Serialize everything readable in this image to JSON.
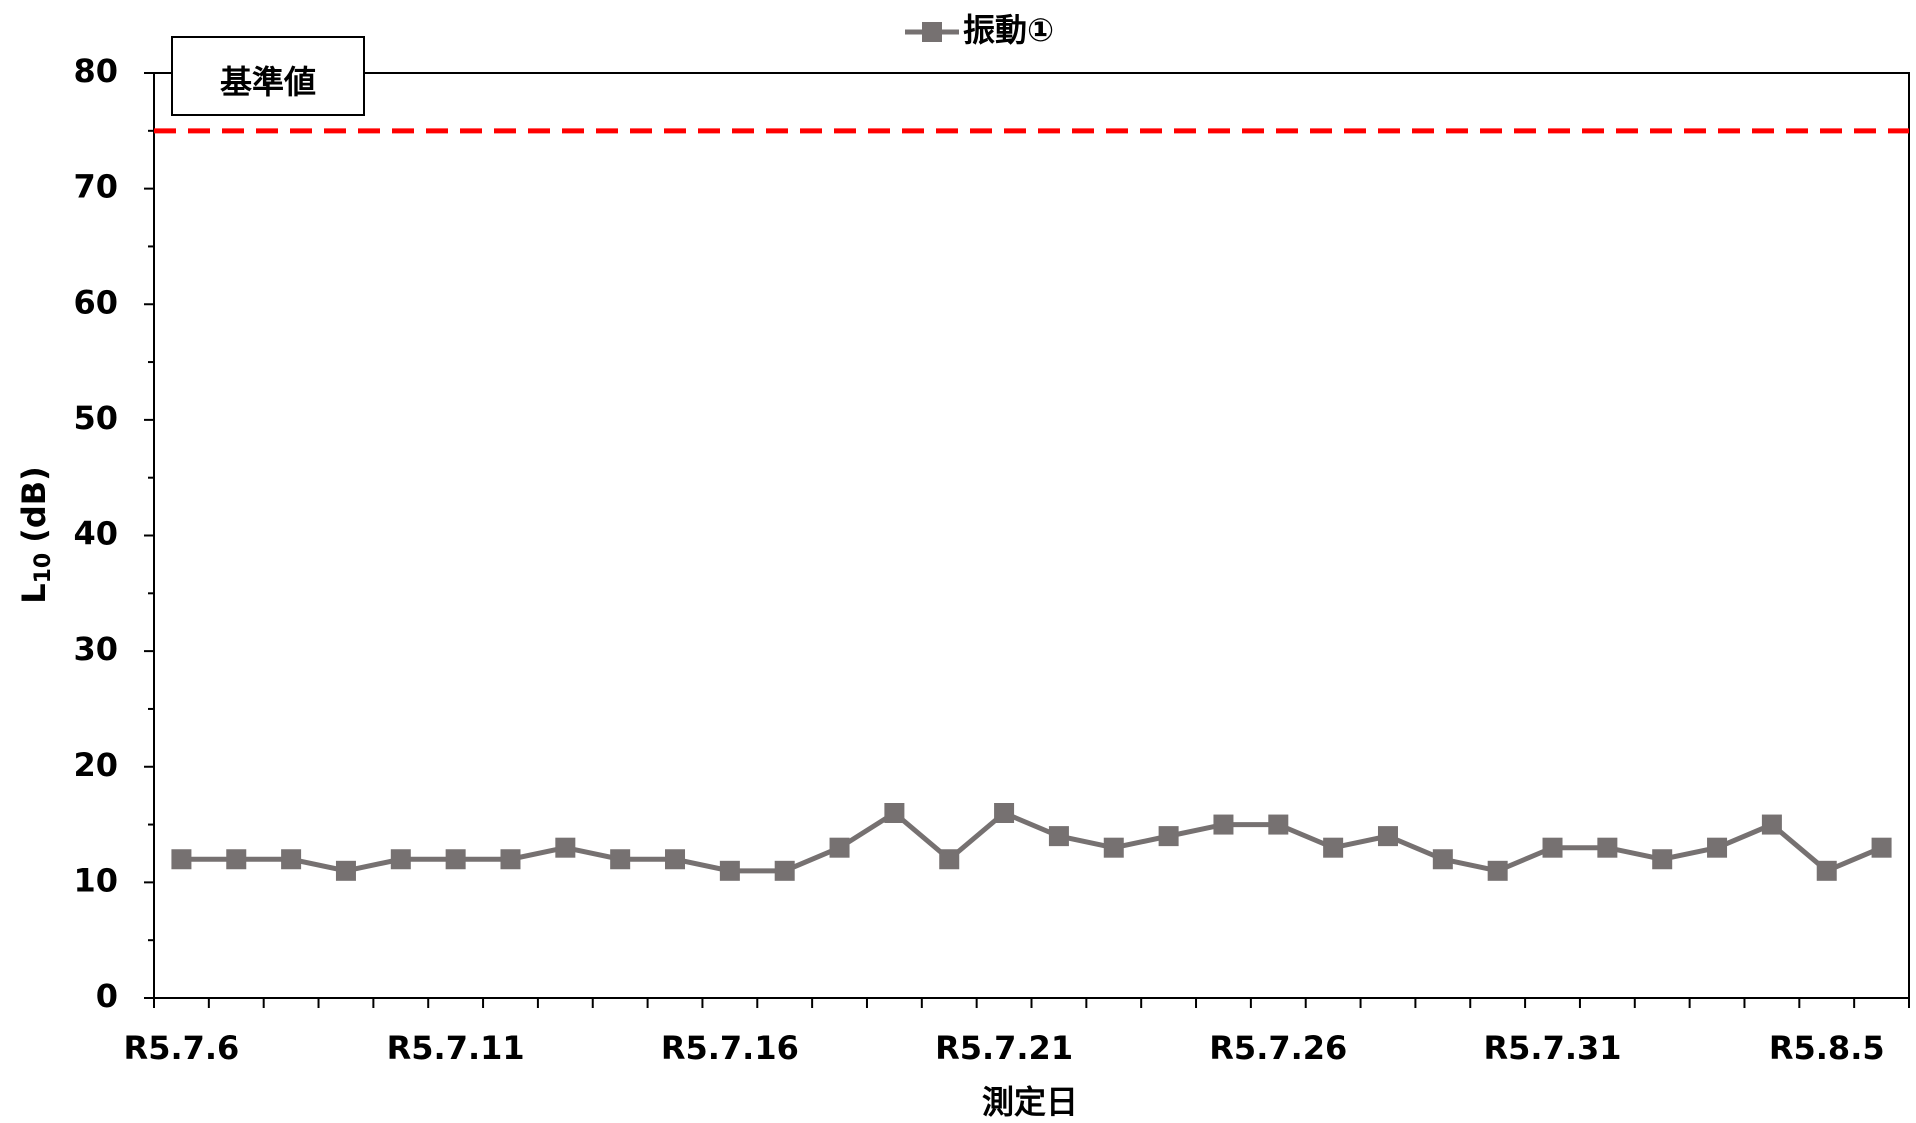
{
  "chart_data": {
    "type": "line",
    "legend_position": "top",
    "xlabel": "測定日",
    "ylabel": {
      "text": "L",
      "subscript": "10",
      "suffix": "(dB)"
    },
    "categories": [
      "R5.7.6",
      null,
      null,
      null,
      null,
      "R5.7.11",
      null,
      null,
      null,
      null,
      "R5.7.16",
      null,
      null,
      null,
      null,
      "R5.7.21",
      null,
      null,
      null,
      null,
      "R5.7.26",
      null,
      null,
      null,
      null,
      "R5.7.31",
      null,
      null,
      null,
      null,
      "R5.8.5",
      null
    ],
    "series": [
      {
        "name": "振動①",
        "color": "#767171",
        "marker": "square",
        "values": [
          12,
          12,
          12,
          11,
          12,
          12,
          12,
          13,
          12,
          12,
          11,
          11,
          13,
          16,
          12,
          16,
          14,
          13,
          14,
          15,
          15,
          13,
          14,
          12,
          11,
          13,
          13,
          12,
          13,
          15,
          11,
          13
        ]
      }
    ],
    "reference_line": {
      "value": 75,
      "label": "基準値",
      "color": "#ff0000"
    },
    "ylim": [
      0,
      80
    ],
    "yticks": [
      0,
      10,
      20,
      30,
      40,
      50,
      60,
      70,
      80
    ],
    "yminorticks": [
      5,
      15,
      25,
      35,
      45,
      55,
      65,
      75
    ],
    "grid": false
  }
}
